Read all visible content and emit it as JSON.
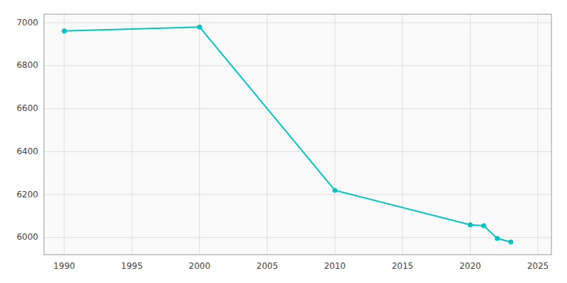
{
  "chart_data": {
    "type": "line",
    "x": [
      1990,
      2000,
      2010,
      2020,
      2021,
      2022,
      2023
    ],
    "values": [
      6962,
      6980,
      6220,
      6059,
      6055,
      5996,
      5979
    ],
    "color": "#00C4C4",
    "marker": "circle",
    "xlim": [
      1988.5,
      2026
    ],
    "ylim": [
      5920,
      7040
    ],
    "xticks": [
      1990,
      1995,
      2000,
      2005,
      2010,
      2015,
      2020,
      2025
    ],
    "yticks": [
      6000,
      6200,
      6400,
      6600,
      6800,
      7000
    ],
    "grid": true
  }
}
